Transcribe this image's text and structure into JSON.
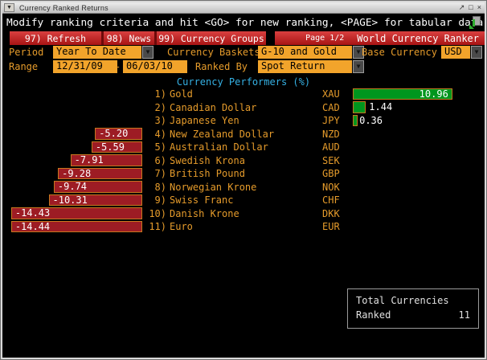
{
  "window": {
    "title": "Currency Ranked Returns",
    "menu_button": "▼",
    "controls": {
      "popout": "↗",
      "maximize": "□",
      "close": "×"
    }
  },
  "message_bar": {
    "text": "Modify ranking criteria and hit <GO> for new ranking, <PAGE> for tabular data"
  },
  "toolbar": {
    "items": [
      {
        "label": "97) Refresh"
      },
      {
        "label": "98) News"
      },
      {
        "label": "99) Currency Groups"
      }
    ],
    "page_indicator": "Page 1/2",
    "app_title": "World Currency Ranker"
  },
  "filters": {
    "period_label": "Period",
    "period_value": "Year To Date",
    "currency_baskets_label": "Currency Baskets",
    "currency_baskets_value": "G-10 and Gold",
    "base_currency_label": "Base Currency",
    "base_currency_value": "USD",
    "range_label": "Range",
    "range_start": "12/31/09",
    "range_separator": "-",
    "range_end": "06/03/10",
    "ranked_by_label": "Ranked By",
    "ranked_by_value": "Spot Return",
    "dropdown_glyph": "▼"
  },
  "chart_data": {
    "type": "bar",
    "orientation": "horizontal",
    "title": "Currency Performers  (%)",
    "xlim": [
      -14.44,
      10.96
    ],
    "zero_baseline": "negative bars extend left in left zone, positive bars extend right beside tickers",
    "rows": [
      {
        "rank": "1)",
        "name": "Gold",
        "ticker": "XAU",
        "value": 10.96,
        "value_label": "10.96"
      },
      {
        "rank": "2)",
        "name": "Canadian Dollar",
        "ticker": "CAD",
        "value": 1.44,
        "value_label": "1.44"
      },
      {
        "rank": "3)",
        "name": "Japanese Yen",
        "ticker": "JPY",
        "value": 0.36,
        "value_label": "0.36"
      },
      {
        "rank": "4)",
        "name": "New Zealand Dollar",
        "ticker": "NZD",
        "value": -5.2,
        "value_label": "-5.20"
      },
      {
        "rank": "5)",
        "name": "Australian Dollar",
        "ticker": "AUD",
        "value": -5.59,
        "value_label": "-5.59"
      },
      {
        "rank": "6)",
        "name": "Swedish Krona",
        "ticker": "SEK",
        "value": -7.91,
        "value_label": "-7.91"
      },
      {
        "rank": "7)",
        "name": "British Pound",
        "ticker": "GBP",
        "value": -9.28,
        "value_label": "-9.28"
      },
      {
        "rank": "8)",
        "name": "Norwegian Krone",
        "ticker": "NOK",
        "value": -9.74,
        "value_label": "-9.74"
      },
      {
        "rank": "9)",
        "name": "Swiss Franc",
        "ticker": "CHF",
        "value": -10.31,
        "value_label": "-10.31"
      },
      {
        "rank": "10)",
        "name": "Danish Krone",
        "ticker": "DKK",
        "value": -14.43,
        "value_label": "-14.43"
      },
      {
        "rank": "11)",
        "name": "Euro",
        "ticker": "EUR",
        "value": -14.44,
        "value_label": "-14.44"
      }
    ],
    "positive_color": "#00961e",
    "negative_color": "#9d1c24",
    "bar_border_color": "#c7781f",
    "legend": "none",
    "grid": false
  },
  "summary": {
    "line1": "Total Currencies",
    "line2": "Ranked",
    "value": "11"
  },
  "colors": {
    "amber_text": "#e59b2b",
    "field_orange": "#f2a42b",
    "toolbar_red_top": "#d94040",
    "toolbar_red_bottom": "#a81414",
    "heading_cyan": "#35b1e4",
    "background": "#000000"
  }
}
